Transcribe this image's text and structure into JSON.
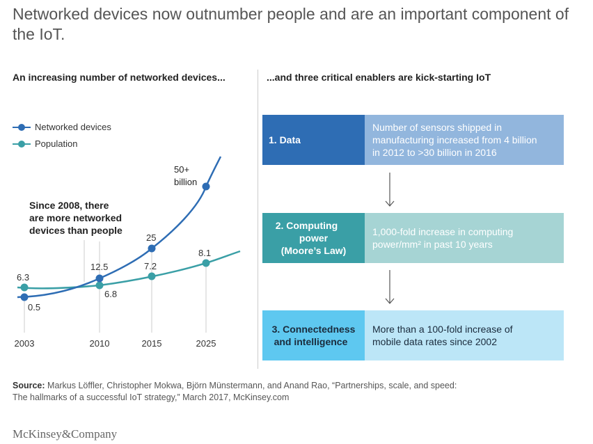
{
  "title": "Networked devices now outnumber people and are an important component of the IoT.",
  "left_heading": "An increasing number of networked devices...",
  "right_heading": "...and three critical enablers are kick-starting IoT",
  "legend": [
    {
      "label": "Networked devices",
      "color": "#2e6db4"
    },
    {
      "label": "Population",
      "color": "#3a9fa6"
    }
  ],
  "annotation_lines": [
    "Since 2008, there",
    "are more networked",
    "devices than people"
  ],
  "chart_data": {
    "type": "line",
    "x": [
      2003,
      2010,
      2015,
      2025
    ],
    "series": [
      {
        "name": "Networked devices",
        "color": "#2e6db4",
        "values": [
          0.5,
          12.5,
          25,
          50
        ],
        "labels": [
          "0.5",
          "12.5",
          "25",
          "50+ billion"
        ]
      },
      {
        "name": "Population",
        "color": "#3a9fa6",
        "values": [
          6.3,
          6.8,
          7.2,
          8.1
        ],
        "labels": [
          "6.3",
          "6.8",
          "7.2",
          "8.1"
        ]
      }
    ],
    "xticks": [
      "2003",
      "2010",
      "2015",
      "2025"
    ]
  },
  "enablers": [
    {
      "label_lines": [
        "1. Data"
      ],
      "text_lines": [
        "Number of sensors shipped in",
        "manufacturing increased from 4 billion",
        "in 2012 to >30 billion in 2016"
      ],
      "label_bg": "#2e6db4",
      "label_color": "#ffffff",
      "text_bg": "#92b6dd",
      "text_color": "#ffffff"
    },
    {
      "label_lines": [
        "2. Computing",
        "power",
        "(Moore’s Law)"
      ],
      "text_lines": [
        "1,000-fold increase in computing",
        "power/mm² in past 10 years"
      ],
      "label_bg": "#3a9fa6",
      "label_color": "#ffffff",
      "text_bg": "#a6d4d4",
      "text_color": "#ffffff"
    },
    {
      "label_lines": [
        "3. Connectedness",
        "and intelligence"
      ],
      "text_lines": [
        "More than a 100-fold increase of",
        "mobile data rates since 2002"
      ],
      "label_bg": "#5ec8f0",
      "label_color": "#1a2b3c",
      "text_bg": "#bce6f7",
      "text_color": "#1a2b3c"
    }
  ],
  "source_label": "Source:",
  "source_lines": [
    "Markus Löffler, Christopher Mokwa, Björn Münstermann, and Anand Rao, “Partnerships, scale, and speed:",
    "The hallmarks of a successful IoT strategy,” March 2017, McKinsey.com"
  ],
  "logo": "McKinsey&Company"
}
